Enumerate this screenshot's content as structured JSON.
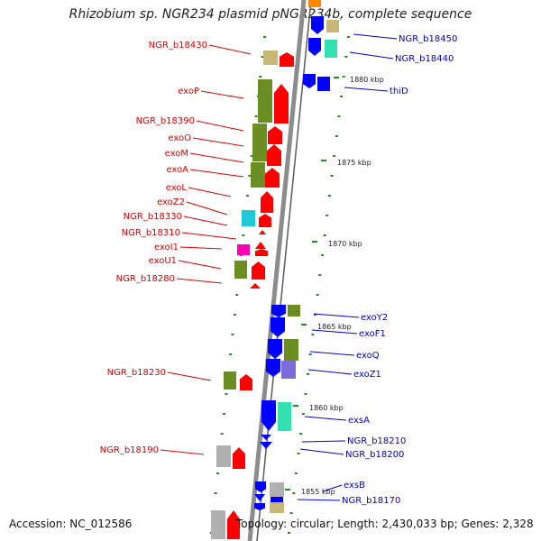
{
  "title": "Rhizobium sp. NGR234 plasmid pNGR234b, complete sequence",
  "accession": "Accession: NC_012586",
  "topology": "Topology: circular; Length: 2,430,033 bp; Genes: 2,328",
  "colors": {
    "left_label": "#dd0000",
    "right_label": "#0000cc",
    "plus_gene": "#ff0000",
    "minus_gene": "#0000ff",
    "olive": "#6b8e23",
    "khaki": "#c8b878",
    "aqua": "#33e0b0",
    "cyan": "#20c8d8",
    "magenta": "#ff00b0",
    "gray": "#b0b0b0",
    "lavender": "#7b6bd8",
    "backbone": "#8c8c8c",
    "tick": "#228b22"
  },
  "ruler": [
    "1880 kbp",
    "1875 kbp",
    "1870 kbp",
    "1865 kbp",
    "1860 kbp",
    "1855 kbp"
  ],
  "left_genes": [
    "NGR_b18430",
    "exoP",
    "NGR_b18390",
    "exoO",
    "exoM",
    "exoA",
    "exoL",
    "exoZ2",
    "NGR_b18330",
    "NGR_b18310",
    "exoI1",
    "exoU1",
    "NGR_b18280",
    "NGR_b18230",
    "NGR_b18190"
  ],
  "right_genes": [
    "NGR_b18450",
    "NGR_b18440",
    "thiD",
    "exoY2",
    "exoF1",
    "exoQ",
    "exoZ1",
    "exsA",
    "NGR_b18210",
    "NGR_b18200",
    "exsB",
    "NGR_b18170"
  ]
}
